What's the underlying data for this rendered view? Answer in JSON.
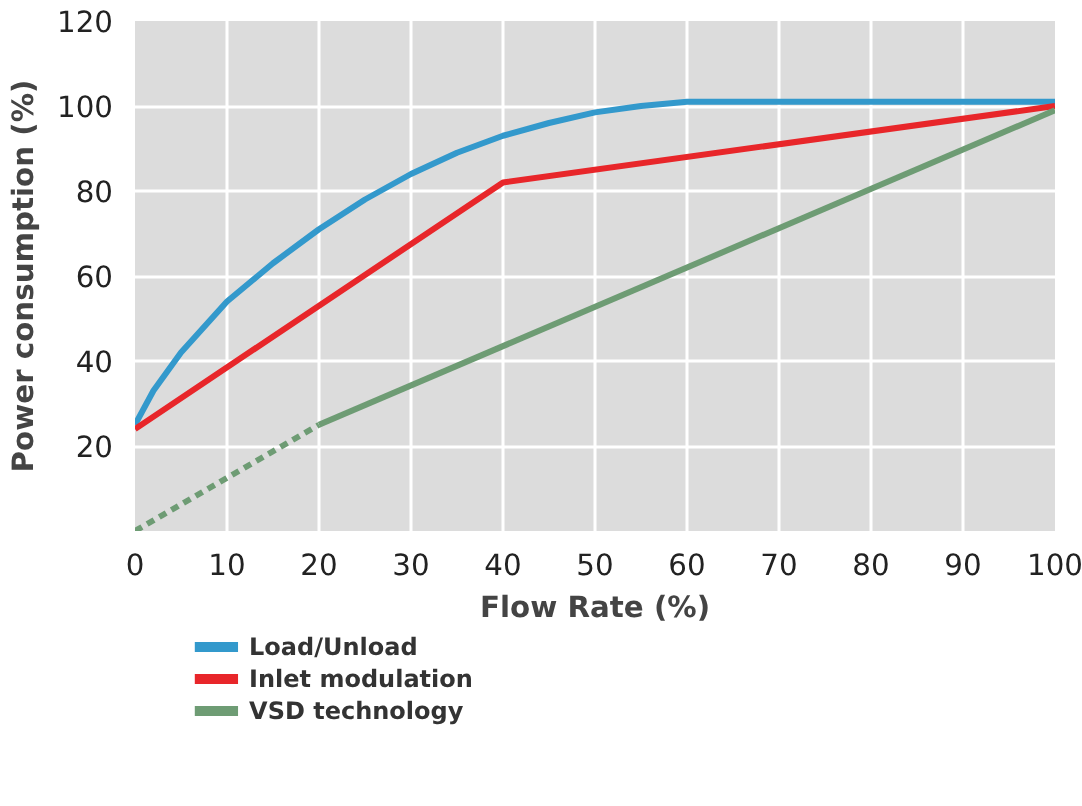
{
  "chart_data": {
    "type": "line",
    "xlabel": "Flow Rate (%)",
    "ylabel": "Power consumption (%)",
    "xlim": [
      0,
      100
    ],
    "ylim": [
      0,
      120
    ],
    "xticks": [
      0,
      10,
      20,
      30,
      40,
      50,
      60,
      70,
      80,
      90,
      100
    ],
    "yticks": [
      20,
      40,
      60,
      80,
      100,
      120
    ],
    "grid": true,
    "legend": "bottom",
    "marker": "none",
    "line_style": "solid",
    "series": [
      {
        "name": "Load/Unload",
        "color": "#3399cc",
        "x": [
          0,
          2,
          5,
          10,
          15,
          20,
          25,
          30,
          35,
          40,
          45,
          50,
          55,
          60,
          65,
          70,
          80,
          90,
          100
        ],
        "values": [
          25,
          33,
          42,
          54,
          63,
          71,
          78,
          84,
          89,
          93,
          96,
          98.5,
          100,
          101,
          101,
          101,
          101,
          101,
          101
        ]
      },
      {
        "name": "Inlet modulation",
        "color": "#e8262a",
        "x": [
          0,
          40,
          100
        ],
        "values": [
          24,
          82,
          100
        ]
      },
      {
        "name": "VSD technology",
        "color": "#6e9c74",
        "x": [
          20,
          100
        ],
        "values": [
          25,
          99
        ]
      },
      {
        "color": "#6e9c74",
        "x": [
          0,
          20
        ],
        "values": [
          0,
          25
        ],
        "line_style": "dashed"
      }
    ]
  }
}
